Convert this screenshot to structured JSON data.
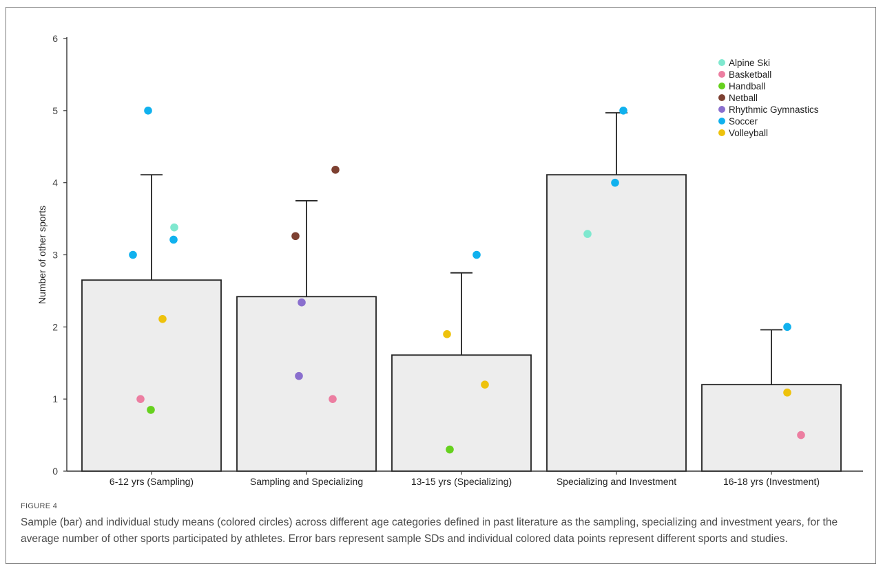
{
  "figure": {
    "label": "FIGURE 4",
    "caption": "Sample (bar) and individual study means (colored circles) across different age categories defined in past literature as the sampling, specializing and investment years, for the average number of other sports participated by athletes. Error bars represent sample SDs and individual colored data points represent different sports and studies."
  },
  "chart_data": {
    "type": "bar",
    "title": "",
    "xlabel": "",
    "ylabel": "Number of other sports",
    "ylim": [
      0,
      6
    ],
    "yticks": [
      0,
      1,
      2,
      3,
      4,
      5,
      6
    ],
    "grid": false,
    "legend_position": "top-right",
    "bar_fill": "#ededed",
    "bar_stroke": "#222222",
    "categories": [
      "6-12 yrs (Sampling)",
      "Sampling and Specializing",
      "13-15 yrs (Specializing)",
      "Specializing and Investment",
      "16-18 yrs (Investment)"
    ],
    "values": [
      2.65,
      2.42,
      1.61,
      4.11,
      1.2
    ],
    "error_upper": [
      4.11,
      3.75,
      2.75,
      4.97,
      1.96
    ],
    "sports": [
      {
        "name": "Alpine Ski",
        "color": "#7fe8cf"
      },
      {
        "name": "Basketball",
        "color": "#ec7ea1"
      },
      {
        "name": "Handball",
        "color": "#66d11e"
      },
      {
        "name": "Netball",
        "color": "#7d4031"
      },
      {
        "name": "Rhythmic Gymnastics",
        "color": "#8a6fce"
      },
      {
        "name": "Soccer",
        "color": "#10b1ee"
      },
      {
        "name": "Volleyball",
        "color": "#eec20c"
      }
    ],
    "points": [
      {
        "category": "6-12 yrs (Sampling)",
        "sport": "Soccer",
        "y": 5.0
      },
      {
        "category": "6-12 yrs (Sampling)",
        "sport": "Alpine Ski",
        "y": 3.38
      },
      {
        "category": "6-12 yrs (Sampling)",
        "sport": "Soccer",
        "y": 3.21
      },
      {
        "category": "6-12 yrs (Sampling)",
        "sport": "Soccer",
        "y": 3.0
      },
      {
        "category": "6-12 yrs (Sampling)",
        "sport": "Volleyball",
        "y": 2.11
      },
      {
        "category": "6-12 yrs (Sampling)",
        "sport": "Basketball",
        "y": 1.0
      },
      {
        "category": "6-12 yrs (Sampling)",
        "sport": "Handball",
        "y": 0.85
      },
      {
        "category": "Sampling and Specializing",
        "sport": "Netball",
        "y": 4.18
      },
      {
        "category": "Sampling and Specializing",
        "sport": "Netball",
        "y": 3.26
      },
      {
        "category": "Sampling and Specializing",
        "sport": "Rhythmic Gymnastics",
        "y": 2.34
      },
      {
        "category": "Sampling and Specializing",
        "sport": "Rhythmic Gymnastics",
        "y": 1.32
      },
      {
        "category": "Sampling and Specializing",
        "sport": "Basketball",
        "y": 1.0
      },
      {
        "category": "13-15 yrs (Specializing)",
        "sport": "Soccer",
        "y": 3.0
      },
      {
        "category": "13-15 yrs (Specializing)",
        "sport": "Volleyball",
        "y": 1.9
      },
      {
        "category": "13-15 yrs (Specializing)",
        "sport": "Volleyball",
        "y": 1.2
      },
      {
        "category": "13-15 yrs (Specializing)",
        "sport": "Handball",
        "y": 0.3
      },
      {
        "category": "Specializing and Investment",
        "sport": "Soccer",
        "y": 5.0
      },
      {
        "category": "Specializing and Investment",
        "sport": "Soccer",
        "y": 4.0
      },
      {
        "category": "Specializing and Investment",
        "sport": "Alpine Ski",
        "y": 3.29
      },
      {
        "category": "16-18 yrs (Investment)",
        "sport": "Soccer",
        "y": 2.0
      },
      {
        "category": "16-18 yrs (Investment)",
        "sport": "Volleyball",
        "y": 1.09
      },
      {
        "category": "16-18 yrs (Investment)",
        "sport": "Basketball",
        "y": 0.5
      }
    ]
  }
}
